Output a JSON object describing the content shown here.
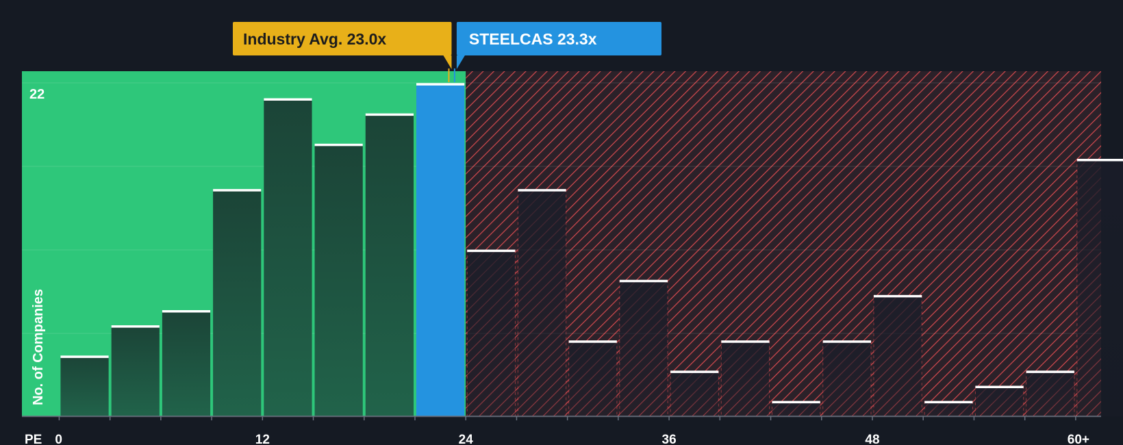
{
  "chart_data": {
    "type": "bar",
    "title": "",
    "xlabel": "PE",
    "ylabel": "No. of Companies",
    "x_tick_labels": [
      "0",
      "12",
      "24",
      "36",
      "48",
      "60+"
    ],
    "x_tick_values": [
      0,
      12,
      24,
      36,
      48,
      60
    ],
    "xlim": [
      -2.2,
      61.5
    ],
    "ylim": [
      0,
      22.8
    ],
    "y_tick_label": "22",
    "bin_width": 3,
    "bins": [
      {
        "x0": 0,
        "value": 4
      },
      {
        "x0": 3,
        "value": 6
      },
      {
        "x0": 6,
        "value": 7
      },
      {
        "x0": 9,
        "value": 15
      },
      {
        "x0": 12,
        "value": 21
      },
      {
        "x0": 15,
        "value": 18
      },
      {
        "x0": 18,
        "value": 20
      },
      {
        "x0": 21,
        "value": 22,
        "highlight": true
      },
      {
        "x0": 24,
        "value": 11
      },
      {
        "x0": 27,
        "value": 15
      },
      {
        "x0": 30,
        "value": 5
      },
      {
        "x0": 33,
        "value": 9
      },
      {
        "x0": 36,
        "value": 3
      },
      {
        "x0": 39,
        "value": 5
      },
      {
        "x0": 42,
        "value": 1
      },
      {
        "x0": 45,
        "value": 5
      },
      {
        "x0": 48,
        "value": 8
      },
      {
        "x0": 51,
        "value": 1
      },
      {
        "x0": 54,
        "value": 2
      },
      {
        "x0": 57,
        "value": 3
      },
      {
        "x0": 60,
        "value": 17
      }
    ],
    "fair_region_end": 24,
    "industry_avg": {
      "value": 23.0,
      "label": "Industry Avg. 23.0x"
    },
    "company": {
      "value": 23.3,
      "label": "STEELCAS 23.3x"
    },
    "colors": {
      "background": "#151a23",
      "fair_zone": "#2ec77a",
      "bar_fill": "#1e4a3b",
      "highlight_bar": "#2493e0",
      "over_zone": "#2b2129",
      "hatch": "#d64a4f",
      "industry_label_bg": "#e8b019",
      "company_label_bg": "#2493e0",
      "cap_line": "#ffffff",
      "text": "#ffffff"
    }
  }
}
